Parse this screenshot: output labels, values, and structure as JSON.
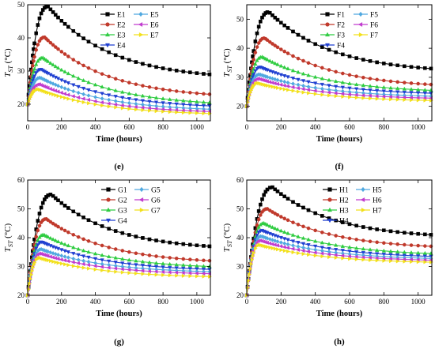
{
  "colors": {
    "series": [
      "#000000",
      "#c0392b",
      "#2ecc40",
      "#1f3fd1",
      "#4fa8e0",
      "#c13ccf",
      "#f2e01b"
    ]
  },
  "chart_data": [
    {
      "panel": "(e)",
      "type": "line",
      "xlabel": "Time (hours)",
      "ylabel": "T",
      "ylabel_sub": "ST",
      "ylabel_unit": " (°C)",
      "xlim": [
        0,
        1080
      ],
      "ylim": [
        15,
        50
      ],
      "xticks": [
        0,
        200,
        400,
        600,
        800,
        1000
      ],
      "yticks": [
        20,
        30,
        40,
        50
      ],
      "legend_cols": [
        [
          "E1",
          "E2",
          "E3",
          "E4"
        ],
        [
          "E5",
          "E6",
          "E7"
        ]
      ],
      "series": [
        {
          "name": "E1",
          "start": 20,
          "peak": 49.5,
          "peak_t": 120,
          "end": 29
        },
        {
          "name": "E2",
          "start": 20,
          "peak": 40.2,
          "peak_t": 100,
          "end": 23
        },
        {
          "name": "E3",
          "start": 20,
          "peak": 34.0,
          "peak_t": 90,
          "end": 20.5
        },
        {
          "name": "E4",
          "start": 20,
          "peak": 30.5,
          "peak_t": 80,
          "end": 19.5
        },
        {
          "name": "E5",
          "start": 20,
          "peak": 28.0,
          "peak_t": 75,
          "end": 18.5
        },
        {
          "name": "E6",
          "start": 20,
          "peak": 26.0,
          "peak_t": 70,
          "end": 17.8
        },
        {
          "name": "E7",
          "start": 20,
          "peak": 24.5,
          "peak_t": 65,
          "end": 17.2
        }
      ]
    },
    {
      "panel": "(f)",
      "type": "line",
      "xlabel": "Time (hours)",
      "ylabel": "T",
      "ylabel_sub": "ST",
      "ylabel_unit": " (°C)",
      "xlim": [
        0,
        1080
      ],
      "ylim": [
        15,
        55
      ],
      "xticks": [
        0,
        200,
        400,
        600,
        800,
        1000
      ],
      "yticks": [
        20,
        30,
        40,
        50
      ],
      "legend_cols": [
        [
          "F1",
          "F2",
          "F3",
          "F4"
        ],
        [
          "F5",
          "F6",
          "F7"
        ]
      ],
      "series": [
        {
          "name": "F1",
          "start": 20,
          "peak": 52.5,
          "peak_t": 130,
          "end": 33
        },
        {
          "name": "F2",
          "start": 20,
          "peak": 43.5,
          "peak_t": 105,
          "end": 27.5
        },
        {
          "name": "F3",
          "start": 20,
          "peak": 37.0,
          "peak_t": 90,
          "end": 25.5
        },
        {
          "name": "F4",
          "start": 20,
          "peak": 33.5,
          "peak_t": 80,
          "end": 24.5
        },
        {
          "name": "F5",
          "start": 20,
          "peak": 31.0,
          "peak_t": 75,
          "end": 23.5
        },
        {
          "name": "F6",
          "start": 20,
          "peak": 29.5,
          "peak_t": 70,
          "end": 22.8
        },
        {
          "name": "F7",
          "start": 20,
          "peak": 28.0,
          "peak_t": 65,
          "end": 22.0
        }
      ]
    },
    {
      "panel": "(g)",
      "type": "line",
      "xlabel": "Time (hours)",
      "ylabel": "T",
      "ylabel_sub": "ST",
      "ylabel_unit": " (°C)",
      "xlim": [
        0,
        1080
      ],
      "ylim": [
        20,
        60
      ],
      "xticks": [
        0,
        200,
        400,
        600,
        800,
        1000
      ],
      "yticks": [
        20,
        30,
        40,
        50,
        60
      ],
      "legend_cols": [
        [
          "G1",
          "G2",
          "G3",
          "G4"
        ],
        [
          "G5",
          "G6",
          "G7"
        ]
      ],
      "series": [
        {
          "name": "G1",
          "start": 20,
          "peak": 55.0,
          "peak_t": 140,
          "end": 37
        },
        {
          "name": "G2",
          "start": 20,
          "peak": 46.5,
          "peak_t": 110,
          "end": 32
        },
        {
          "name": "G3",
          "start": 20,
          "peak": 41.0,
          "peak_t": 95,
          "end": 30
        },
        {
          "name": "G4",
          "start": 20,
          "peak": 38.5,
          "peak_t": 85,
          "end": 29
        },
        {
          "name": "G5",
          "start": 20,
          "peak": 36.0,
          "peak_t": 80,
          "end": 28.2
        },
        {
          "name": "G6",
          "start": 20,
          "peak": 34.5,
          "peak_t": 75,
          "end": 27.5
        },
        {
          "name": "G7",
          "start": 20,
          "peak": 33.0,
          "peak_t": 70,
          "end": 26.5
        }
      ]
    },
    {
      "panel": "(h)",
      "type": "line",
      "xlabel": "Time (hours)",
      "ylabel": "T",
      "ylabel_sub": "ST",
      "ylabel_unit": " (°C)",
      "xlim": [
        0,
        1080
      ],
      "ylim": [
        20,
        60
      ],
      "xticks": [
        0,
        200,
        400,
        600,
        800,
        1000
      ],
      "yticks": [
        20,
        30,
        40,
        50,
        60
      ],
      "legend_cols": [
        [
          "H1",
          "H2",
          "H3",
          "H4"
        ],
        [
          "H5",
          "H6",
          "H7"
        ]
      ],
      "series": [
        {
          "name": "H1",
          "start": 20,
          "peak": 57.5,
          "peak_t": 150,
          "end": 41
        },
        {
          "name": "H2",
          "start": 20,
          "peak": 50.0,
          "peak_t": 120,
          "end": 37
        },
        {
          "name": "H3",
          "start": 20,
          "peak": 45.0,
          "peak_t": 100,
          "end": 34.5
        },
        {
          "name": "H4",
          "start": 20,
          "peak": 42.5,
          "peak_t": 90,
          "end": 33.5
        },
        {
          "name": "H5",
          "start": 20,
          "peak": 40.5,
          "peak_t": 85,
          "end": 32.8
        },
        {
          "name": "H6",
          "start": 20,
          "peak": 39.0,
          "peak_t": 80,
          "end": 32.2
        },
        {
          "name": "H7",
          "start": 20,
          "peak": 37.5,
          "peak_t": 75,
          "end": 31.5
        }
      ]
    }
  ]
}
